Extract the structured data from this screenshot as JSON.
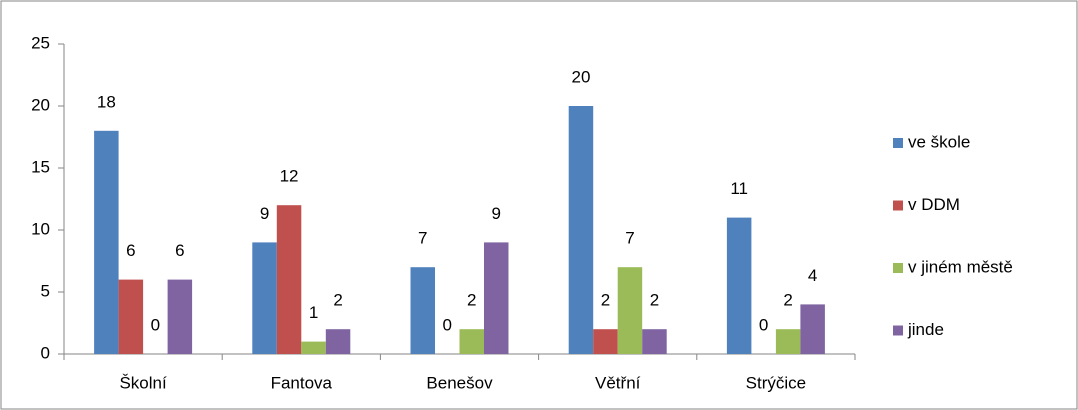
{
  "chart_data": {
    "type": "bar",
    "categories": [
      "Školní",
      "Fantova",
      "Benešov",
      "Větřní",
      "Strýčice"
    ],
    "series": [
      {
        "name": "ve škole",
        "color": "#4f81bd",
        "values": [
          18,
          9,
          7,
          20,
          11
        ]
      },
      {
        "name": "v DDM",
        "color": "#c0504d",
        "values": [
          6,
          12,
          0,
          2,
          0
        ]
      },
      {
        "name": "v jiném městě",
        "color": "#9bbb59",
        "values": [
          0,
          1,
          2,
          7,
          2
        ]
      },
      {
        "name": "jinde",
        "color": "#8064a2",
        "values": [
          6,
          2,
          9,
          2,
          4
        ]
      }
    ],
    "ylim": [
      0,
      25
    ],
    "yticks": [
      0,
      5,
      10,
      15,
      20,
      25
    ],
    "grid": false,
    "legend": "right",
    "data_labels": true
  }
}
